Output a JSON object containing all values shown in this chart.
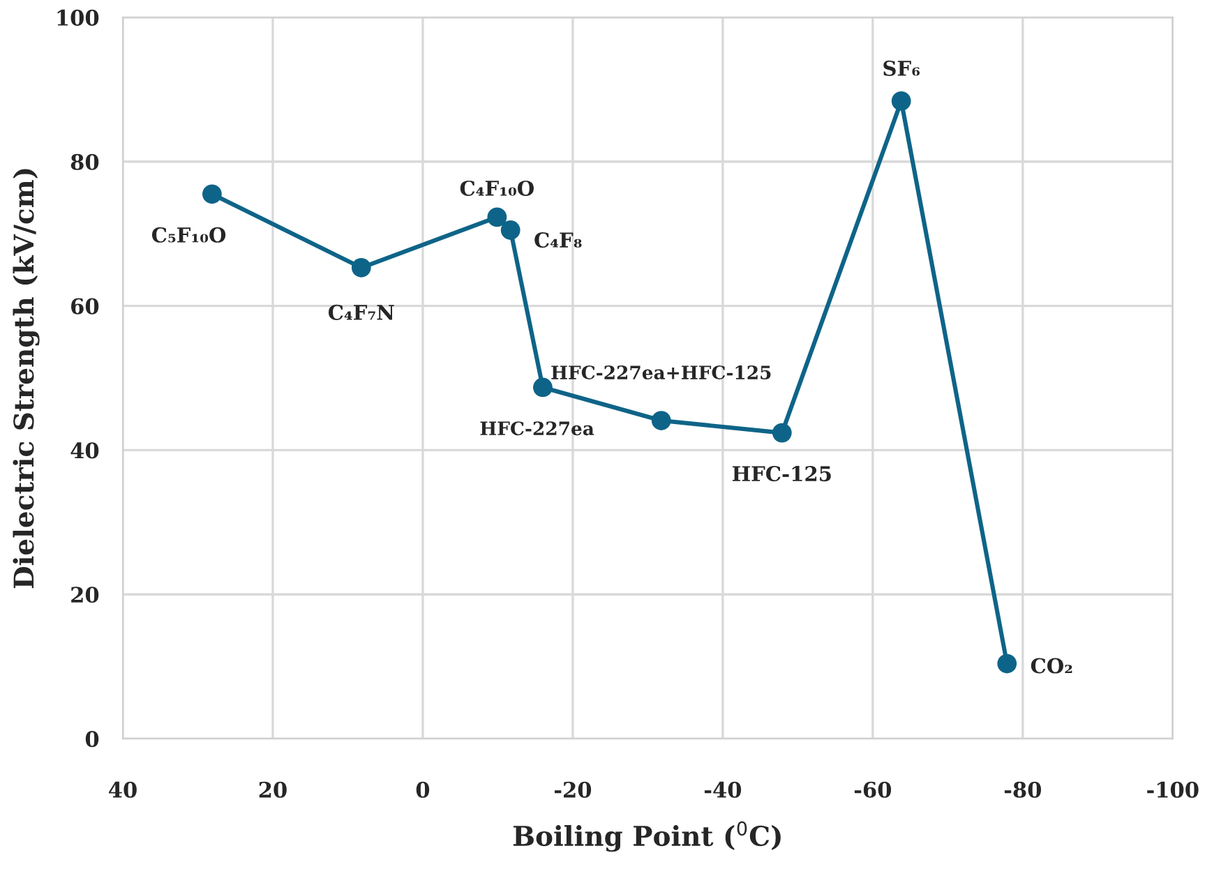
{
  "chart_data": {
    "type": "line",
    "xlabel": "Boiling Point ($^{0}$C)",
    "ylabel": "Dielectric Strength (kV/cm)",
    "x": [
      28.1,
      8.2,
      -9.9,
      -11.7,
      -16,
      -31.8,
      -47.9,
      -63.8,
      -77.9
    ],
    "series": [
      {
        "color": "#0e6488",
        "values": [
          75.5,
          65.3,
          72.3,
          70.5,
          48.7,
          44.1,
          42.4,
          88.4,
          10.4
        ]
      }
    ],
    "xlim": [
      40,
      -100
    ],
    "xticks": [
      40,
      20,
      0,
      -20,
      -40,
      -60,
      -80,
      -100
    ],
    "ylim": [
      0,
      100
    ],
    "yticks": [
      0,
      20,
      40,
      60,
      80,
      100
    ],
    "grid": true,
    "marker": "circle",
    "line_style": "solid",
    "annotations": [
      {
        "text": "C₅F₁₀O",
        "x": 28.1,
        "y": 75.5
      },
      {
        "text": "C₄F₇N",
        "x": 8.2,
        "y": 65.3
      },
      {
        "text": "C₄F₁₀O",
        "x": -9.9,
        "y": 72.3
      },
      {
        "text": "C₄F₈",
        "x": -11.7,
        "y": 70.5
      },
      {
        "text": "HFC-227ea",
        "x": -16,
        "y": 48.7
      },
      {
        "text": "HFC-227ea+HFC-125",
        "x": -31.8,
        "y": 44.1
      },
      {
        "text": "HFC-125",
        "x": -47.9,
        "y": 42.4
      },
      {
        "text": "SF₆",
        "x": -63.8,
        "y": 88.4
      },
      {
        "text": "CO₂",
        "x": -77.9,
        "y": 10.4
      }
    ]
  }
}
